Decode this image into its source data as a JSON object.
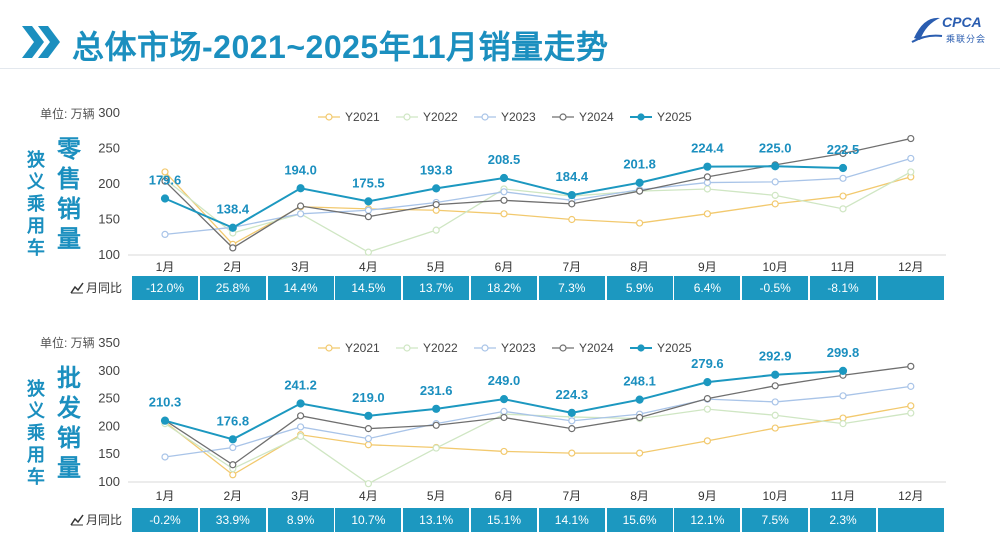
{
  "title": "总体市场-2021~2025年11月销量走势",
  "logo": {
    "name": "CPCA",
    "sub": "乘联分会"
  },
  "months": [
    "1月",
    "2月",
    "3月",
    "4月",
    "5月",
    "6月",
    "7月",
    "8月",
    "9月",
    "10月",
    "11月",
    "12月"
  ],
  "colors": {
    "Y2021": "#f2c96e",
    "Y2022": "#cfe6c3",
    "Y2023": "#a9c4e8",
    "Y2024": "#6f6f6f",
    "Y2025": "#1c98c0",
    "accent": "#1b8fbf"
  },
  "yoy_label": "月同比",
  "chart_data": [
    {
      "type": "line",
      "category": "狭义乘用车",
      "subtitle": "零售销量",
      "unit": "单位: 万辆",
      "ylim": [
        100,
        300
      ],
      "yticks": [
        100,
        150,
        200,
        250,
        300
      ],
      "categories": [
        "1月",
        "2月",
        "3月",
        "4月",
        "5月",
        "6月",
        "7月",
        "8月",
        "9月",
        "10月",
        "11月",
        "12月"
      ],
      "series": [
        {
          "name": "Y2021",
          "values": [
            217,
            115,
            168,
            165,
            163,
            158,
            150,
            145,
            158,
            172,
            183,
            210
          ]
        },
        {
          "name": "Y2022",
          "values": [
            207,
            131,
            158,
            104,
            135,
            193,
            183,
            190,
            193,
            184,
            165,
            217
          ]
        },
        {
          "name": "Y2023",
          "values": [
            129,
            139,
            158,
            163,
            174,
            189,
            177,
            192,
            202,
            203,
            208,
            236
          ]
        },
        {
          "name": "Y2024",
          "values": [
            204,
            110,
            169,
            154,
            171,
            177,
            172,
            190,
            210,
            227,
            243,
            264
          ]
        },
        {
          "name": "Y2025",
          "values": [
            179.6,
            138.4,
            194.0,
            175.5,
            193.8,
            208.5,
            184.4,
            201.8,
            224.4,
            225.0,
            222.5,
            null
          ]
        }
      ],
      "data_labels": [
        "179.6",
        "138.4",
        "194.0",
        "175.5",
        "193.8",
        "208.5",
        "184.4",
        "201.8",
        "224.4",
        "225.0",
        "222.5"
      ],
      "yoy": [
        "-12.0%",
        "25.8%",
        "14.4%",
        "14.5%",
        "13.7%",
        "18.2%",
        "7.3%",
        "5.9%",
        "6.4%",
        "-0.5%",
        "-8.1%",
        ""
      ]
    },
    {
      "type": "line",
      "category": "狭义乘用车",
      "subtitle": "批发销量",
      "unit": "单位: 万辆",
      "ylim": [
        100,
        350
      ],
      "yticks": [
        100,
        150,
        200,
        250,
        300,
        350
      ],
      "categories": [
        "1月",
        "2月",
        "3月",
        "4月",
        "5月",
        "6月",
        "7月",
        "8月",
        "9月",
        "10月",
        "11月",
        "12月"
      ],
      "series": [
        {
          "name": "Y2021",
          "values": [
            208,
            113,
            185,
            167,
            162,
            155,
            152,
            152,
            174,
            197,
            215,
            237
          ]
        },
        {
          "name": "Y2022",
          "values": [
            205,
            124,
            182,
            97,
            161,
            222,
            217,
            214,
            231,
            220,
            205,
            224
          ]
        },
        {
          "name": "Y2023",
          "values": [
            145,
            162,
            199,
            178,
            205,
            227,
            210,
            222,
            249,
            244,
            255,
            272
          ]
        },
        {
          "name": "Y2024",
          "values": [
            211,
            131,
            219,
            196,
            202,
            216,
            196,
            216,
            250,
            273,
            292,
            308
          ]
        },
        {
          "name": "Y2025",
          "values": [
            210.3,
            176.8,
            241.2,
            219.0,
            231.6,
            249.0,
            224.3,
            248.1,
            279.6,
            292.9,
            299.8,
            null
          ]
        }
      ],
      "data_labels": [
        "210.3",
        "176.8",
        "241.2",
        "219.0",
        "231.6",
        "249.0",
        "224.3",
        "248.1",
        "279.6",
        "292.9",
        "299.8"
      ],
      "yoy": [
        "-0.2%",
        "33.9%",
        "8.9%",
        "10.7%",
        "13.1%",
        "15.1%",
        "14.1%",
        "15.6%",
        "12.1%",
        "7.5%",
        "2.3%",
        ""
      ]
    }
  ]
}
